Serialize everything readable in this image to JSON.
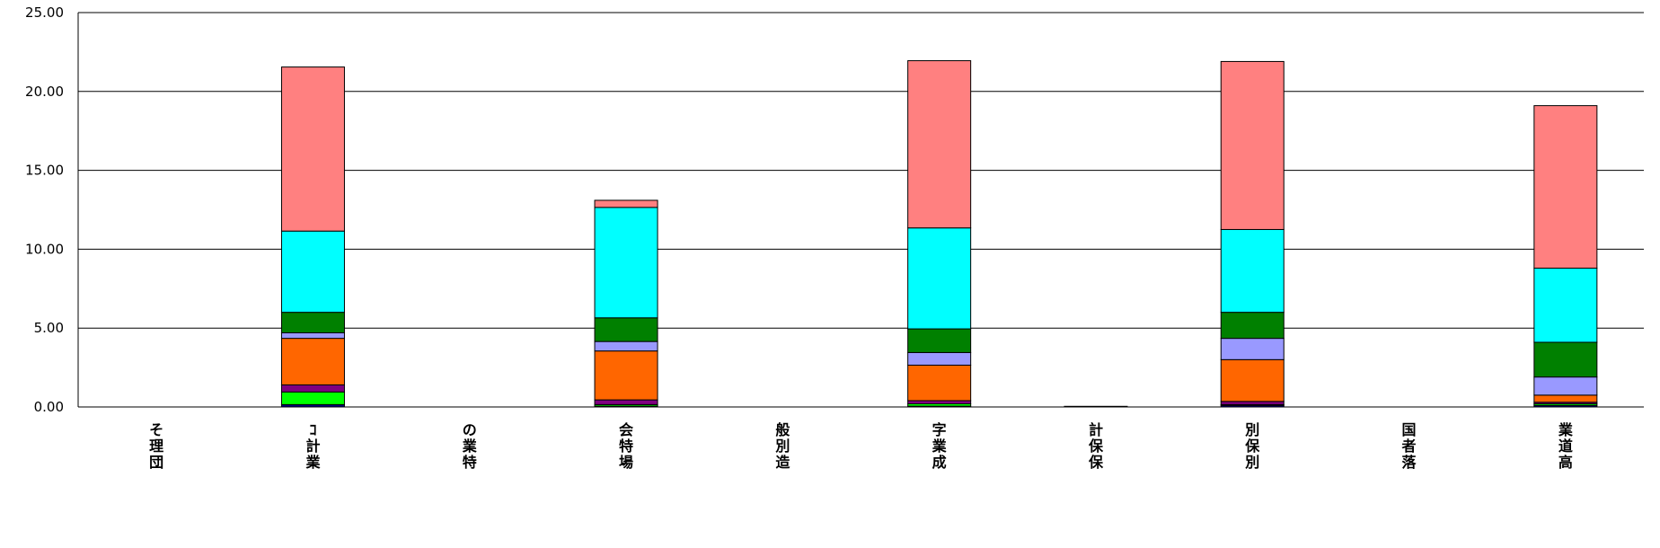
{
  "chart_data": {
    "type": "bar",
    "stacked": true,
    "ylim": [
      0,
      25
    ],
    "y_ticks": [
      "0.00",
      "5.00",
      "10.00",
      "15.00",
      "20.00",
      "25.00"
    ],
    "grid": true,
    "legend": "none",
    "categories": [
      "そ理団",
      "ｺ計業",
      "の業特",
      "会特場",
      "般別造",
      "字業成",
      "計保保",
      "別保別",
      "国者落",
      "業道高"
    ],
    "series": [
      {
        "color": "#000080",
        "values": [
          0,
          0.15,
          0,
          0.05,
          0,
          0.05,
          0.04,
          0.1,
          0,
          0.1
        ]
      },
      {
        "color": "#00FF00",
        "values": [
          0,
          0.8,
          0,
          0.1,
          0,
          0.15,
          0,
          0.05,
          0,
          0.1
        ]
      },
      {
        "color": "#800080",
        "values": [
          0,
          0.45,
          0,
          0.3,
          0,
          0.2,
          0,
          0.2,
          0,
          0.1
        ]
      },
      {
        "color": "#FF6600",
        "values": [
          0,
          2.95,
          0,
          3.1,
          0,
          2.25,
          0,
          2.65,
          0,
          0.45
        ]
      },
      {
        "color": "#9999FF",
        "values": [
          0,
          0.35,
          0,
          0.6,
          0,
          0.8,
          0,
          1.35,
          0,
          1.15
        ]
      },
      {
        "color": "#008000",
        "values": [
          0,
          1.3,
          0,
          1.5,
          0,
          1.5,
          0,
          1.65,
          0,
          2.2
        ]
      },
      {
        "color": "#00FFFF",
        "values": [
          0,
          5.15,
          0,
          7.0,
          0,
          6.4,
          0,
          5.25,
          0,
          4.7
        ]
      },
      {
        "color": "#FF8080",
        "values": [
          0,
          10.4,
          0,
          0.45,
          0,
          10.6,
          0,
          10.65,
          0,
          10.3
        ]
      }
    ]
  }
}
